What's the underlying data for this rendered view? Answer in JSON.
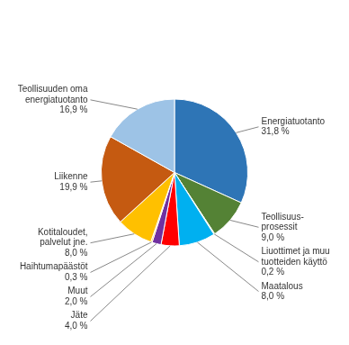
{
  "chart_data": {
    "type": "pie",
    "categories": [
      "Energiatuotanto",
      "Teollisuus-\nprosessit",
      "Liuottimet ja muu\ntuotteiden käyttö",
      "Maatalous",
      "Jäte",
      "Muut",
      "Haihtumapäästöt",
      "Kotitaloudet,\npalvelut jne.",
      "Liikenne",
      "Teollisuuden oma\nenergiatuotanto"
    ],
    "values": [
      31.8,
      9.0,
      0.2,
      8.0,
      4.0,
      2.0,
      0.3,
      8.0,
      19.9,
      16.9
    ],
    "value_labels": [
      "31,8 %",
      "9,0 %",
      "0,2 %",
      "8,0 %",
      "4,0 %",
      "2,0 %",
      "0,3 %",
      "8,0 %",
      "19,9 %",
      "16,9 %"
    ],
    "colors": [
      "#2E75B6",
      "#548235",
      "#92D050",
      "#00B0F0",
      "#FF0000",
      "#7030A0",
      "#FFC000",
      "#FFC000",
      "#C55A11",
      "#9DC3E6"
    ],
    "data_labels": true
  }
}
